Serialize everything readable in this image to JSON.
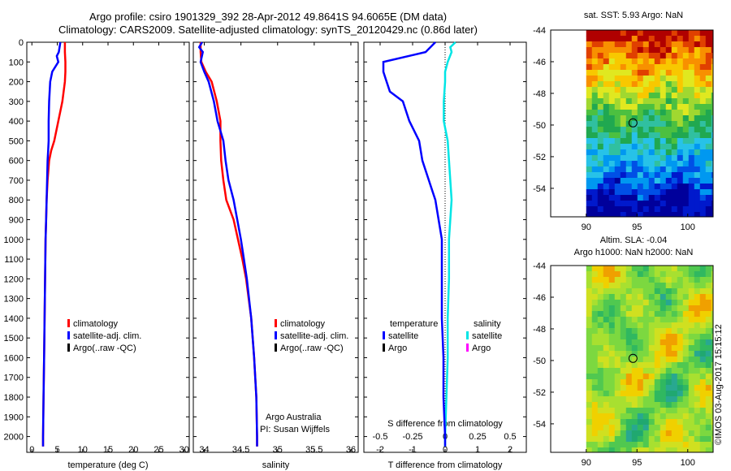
{
  "header": {
    "line1": "Argo profile: csiro 1901329_392 28-Apr-2012 49.8641S 94.6065E (DM data)",
    "line2": "Climatology: CARS2009. Satellite-adjusted climatology: synTS_20120429.nc (0.86d later)"
  },
  "colors": {
    "climatology": "#ff0000",
    "satellite": "#0000ff",
    "argo": "#000000",
    "sal_satellite": "#00e5e5",
    "sal_argo": "#ff00ff"
  },
  "depth_ticks": [
    "0",
    "100",
    "200",
    "300",
    "400",
    "500",
    "600",
    "700",
    "800",
    "900",
    "1000",
    "1100",
    "1200",
    "1300",
    "1400",
    "1500",
    "1600",
    "1700",
    "1800",
    "1900",
    "2000"
  ],
  "panel1": {
    "xlabel": "temperature (deg C)",
    "ticks": [
      "0",
      "5",
      "10",
      "15",
      "20",
      "25",
      "30"
    ],
    "legend": [
      "climatology",
      "satellite-adj. clim.",
      "Argo(..raw -QC)"
    ]
  },
  "panel2": {
    "xlabel": "salinity",
    "ticks": [
      "34",
      "34.5",
      "35",
      "35.5",
      "36"
    ],
    "legend": [
      "climatology",
      "satellite-adj. clim.",
      "Argo(..raw -QC)"
    ],
    "note1": "Argo Australia",
    "note2": "PI: Susan Wijffels"
  },
  "panel3": {
    "xlabel": "T difference from climatology",
    "bottom_ticks": [
      "-2",
      "-1",
      "0",
      "1",
      "2"
    ],
    "top_label": "S difference from climatology",
    "top_ticks": [
      "-0.5",
      "-0.25",
      "0",
      "0.25",
      "0.5"
    ],
    "legend_temp_title": "temperature",
    "legend_sal_title": "salinity",
    "legend_items": [
      "satellite",
      "Argo"
    ]
  },
  "map1": {
    "title": "sat. SST: 5.93 Argo: NaN",
    "yticks": [
      "-44",
      "-46",
      "-48",
      "-50",
      "-52",
      "-54"
    ],
    "xticks": [
      "90",
      "95",
      "100"
    ]
  },
  "map2": {
    "title1": "Altim. SLA: -0.04",
    "title2": "Argo h1000: NaN h2000: NaN",
    "yticks": [
      "-44",
      "-46",
      "-48",
      "-50",
      "-52",
      "-54"
    ],
    "xticks": [
      "90",
      "95",
      "100"
    ]
  },
  "stamp": "©IMOS 03-Aug-2017 15:15:12",
  "chart_data": [
    {
      "type": "line",
      "ylabel": "",
      "xlabel": "temperature (deg C)",
      "xlim": [
        -1,
        31
      ],
      "ylim": [
        2080,
        0
      ],
      "series": [
        {
          "name": "climatology",
          "depth": [
            0,
            50,
            100,
            150,
            200,
            300,
            400,
            500,
            550,
            600,
            700,
            800,
            900,
            1000,
            1200,
            1400,
            1600,
            1800,
            2000,
            2050
          ],
          "values": [
            6.5,
            6.5,
            6.6,
            6.6,
            6.5,
            6.0,
            5.2,
            4.4,
            3.8,
            3.4,
            3.1,
            2.9,
            2.8,
            2.7,
            2.6,
            2.5,
            2.4,
            2.3,
            2.2,
            2.2
          ]
        },
        {
          "name": "satellite-adj. clim.",
          "depth": [
            0,
            50,
            70,
            100,
            150,
            200,
            300,
            400,
            500,
            550,
            600,
            700,
            800,
            900,
            1000,
            1200,
            1400,
            1600,
            1800,
            2000,
            2050
          ],
          "values": [
            5.6,
            5.3,
            4.9,
            5.2,
            4.0,
            3.6,
            3.4,
            3.3,
            3.3,
            3.2,
            3.1,
            3.0,
            2.9,
            2.8,
            2.7,
            2.6,
            2.5,
            2.4,
            2.3,
            2.2,
            2.2
          ]
        }
      ]
    },
    {
      "type": "line",
      "xlabel": "salinity",
      "xlim": [
        33.85,
        36.1
      ],
      "ylim": [
        2080,
        0
      ],
      "series": [
        {
          "name": "climatology",
          "depth": [
            0,
            50,
            100,
            150,
            200,
            300,
            400,
            500,
            600,
            700,
            800,
            900,
            1000,
            1100,
            1200,
            1400,
            1600,
            1800,
            2000,
            2050
          ],
          "values": [
            33.95,
            33.95,
            33.96,
            34.02,
            34.1,
            34.17,
            34.22,
            34.22,
            34.23,
            34.26,
            34.3,
            34.4,
            34.46,
            34.52,
            34.57,
            34.64,
            34.68,
            34.71,
            34.72,
            34.72
          ]
        },
        {
          "name": "satellite-adj. clim.",
          "depth": [
            0,
            25,
            50,
            100,
            150,
            200,
            300,
            400,
            500,
            600,
            700,
            800,
            900,
            1000,
            1100,
            1200,
            1400,
            1600,
            1800,
            2000,
            2050
          ],
          "values": [
            33.97,
            33.93,
            33.98,
            33.95,
            34.0,
            34.06,
            34.13,
            34.18,
            34.26,
            34.29,
            34.33,
            34.4,
            34.45,
            34.5,
            34.54,
            34.58,
            34.64,
            34.68,
            34.71,
            34.72,
            34.72
          ]
        }
      ]
    },
    {
      "type": "line",
      "xlabel": "T difference from climatology",
      "xlim": [
        -2.5,
        2.5
      ],
      "top_axis": "S difference from climatology",
      "top_xlim": [
        -0.625,
        0.625
      ],
      "ylim": [
        2080,
        0
      ],
      "series": [
        {
          "name": "temperature satellite",
          "depth": [
            0,
            50,
            100,
            150,
            200,
            250,
            300,
            400,
            500,
            600,
            700,
            800,
            900,
            1000,
            1200,
            1400,
            1600,
            1800,
            2000,
            2050
          ],
          "values": [
            -0.3,
            -0.6,
            -1.9,
            -1.9,
            -1.8,
            -1.7,
            -1.3,
            -1.1,
            -0.8,
            -0.7,
            -0.5,
            -0.3,
            -0.2,
            -0.1,
            -0.1,
            -0.1,
            -0.05,
            -0.05,
            0,
            0
          ]
        },
        {
          "name": "salinity satellite",
          "depth": [
            0,
            25,
            50,
            100,
            150,
            200,
            300,
            400,
            500,
            600,
            700,
            800,
            900,
            1000,
            1200,
            1400,
            1600,
            1800,
            2000,
            2050
          ],
          "values": [
            0.08,
            0.04,
            0.05,
            0.02,
            0.0,
            0.0,
            -0.01,
            -0.01,
            0.02,
            0.03,
            0.04,
            0.05,
            0.04,
            0.03,
            0.03,
            0.02,
            0.02,
            0.01,
            0.0,
            0.0
          ]
        }
      ]
    },
    {
      "type": "heatmap",
      "title": "sat. SST: 5.93 Argo: NaN",
      "xlim": [
        86.5,
        102.5
      ],
      "ylim": [
        -55.8,
        -44
      ],
      "marker": {
        "lon": 94.6065,
        "lat": -49.8641
      }
    },
    {
      "type": "heatmap",
      "title": "Altim. SLA: -0.04",
      "xlim": [
        86.5,
        102.5
      ],
      "ylim": [
        -55.8,
        -44
      ],
      "marker": {
        "lon": 94.6065,
        "lat": -49.8641
      }
    }
  ]
}
